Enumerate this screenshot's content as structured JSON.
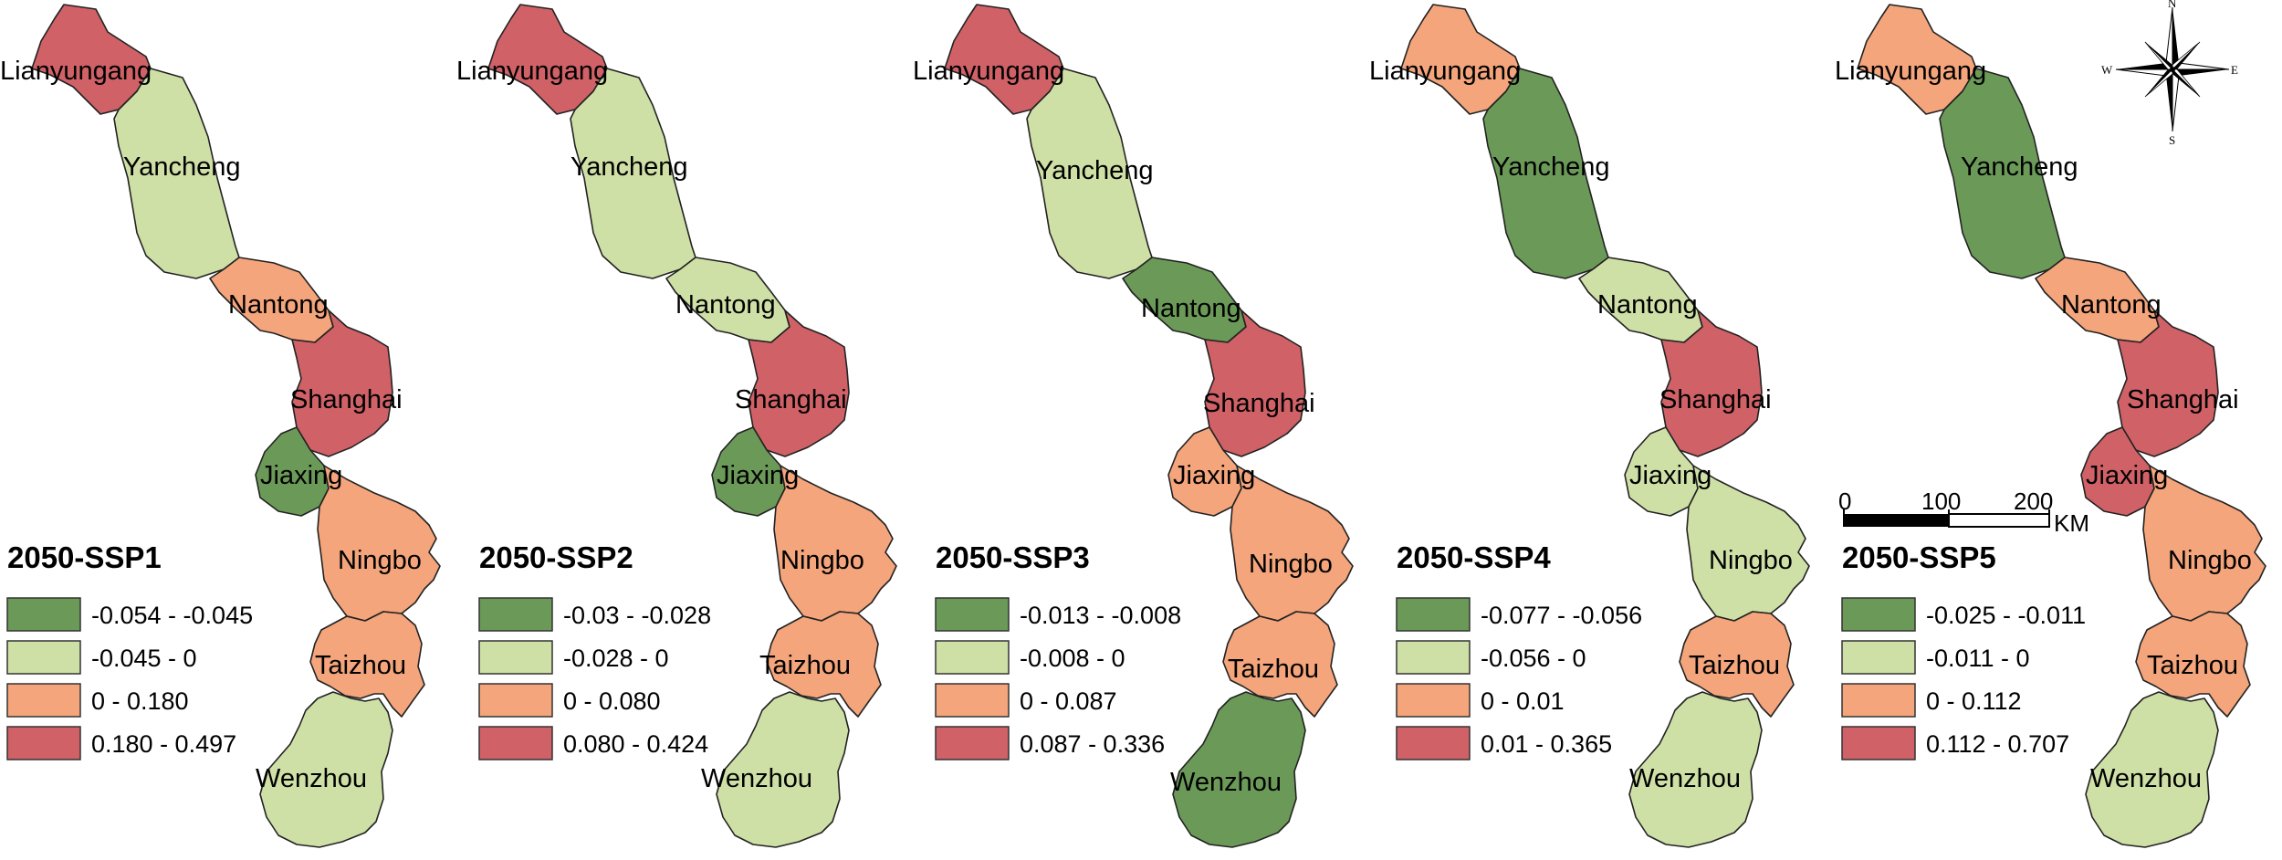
{
  "colors": {
    "class1": "#6b9a58",
    "class2": "#cfe0a6",
    "class3": "#f4a57b",
    "class4": "#cf6167"
  },
  "cities": [
    "Lianyungang",
    "Yancheng",
    "Nantong",
    "Shanghai",
    "Jiaxing",
    "Ningbo",
    "Taizhou",
    "Wenzhou"
  ],
  "panels": [
    {
      "title": "2050-SSP1",
      "legend": [
        "-0.054 - -0.045",
        "-0.045 - 0",
        "0 - 0.180",
        "0.180 - 0.497"
      ],
      "classes": [
        4,
        2,
        3,
        4,
        1,
        3,
        3,
        2
      ]
    },
    {
      "title": "2050-SSP2",
      "legend": [
        "-0.03 - -0.028",
        "-0.028 - 0",
        "0 - 0.080",
        "0.080 - 0.424"
      ],
      "classes": [
        4,
        2,
        2,
        4,
        1,
        3,
        3,
        2
      ]
    },
    {
      "title": "2050-SSP3",
      "legend": [
        "-0.013 - -0.008",
        "-0.008 - 0",
        "0 - 0.087",
        "0.087 - 0.336"
      ],
      "classes": [
        4,
        2,
        1,
        4,
        3,
        3,
        3,
        1
      ]
    },
    {
      "title": "2050-SSP4",
      "legend": [
        "-0.077 - -0.056",
        "-0.056 - 0",
        "0 - 0.01",
        "0.01 - 0.365"
      ],
      "classes": [
        3,
        1,
        2,
        4,
        2,
        2,
        3,
        2
      ]
    },
    {
      "title": "2050-SSP5",
      "legend": [
        "-0.025 - -0.011",
        "-0.011 - 0",
        "0 - 0.112",
        "0.112 - 0.707"
      ],
      "classes": [
        3,
        1,
        3,
        4,
        4,
        3,
        3,
        2
      ]
    }
  ],
  "scale_bar": {
    "ticks": [
      "0",
      "100",
      "200"
    ],
    "unit": "KM"
  },
  "compass": {
    "north": "N",
    "south": "S",
    "east": "E",
    "west": "W"
  }
}
